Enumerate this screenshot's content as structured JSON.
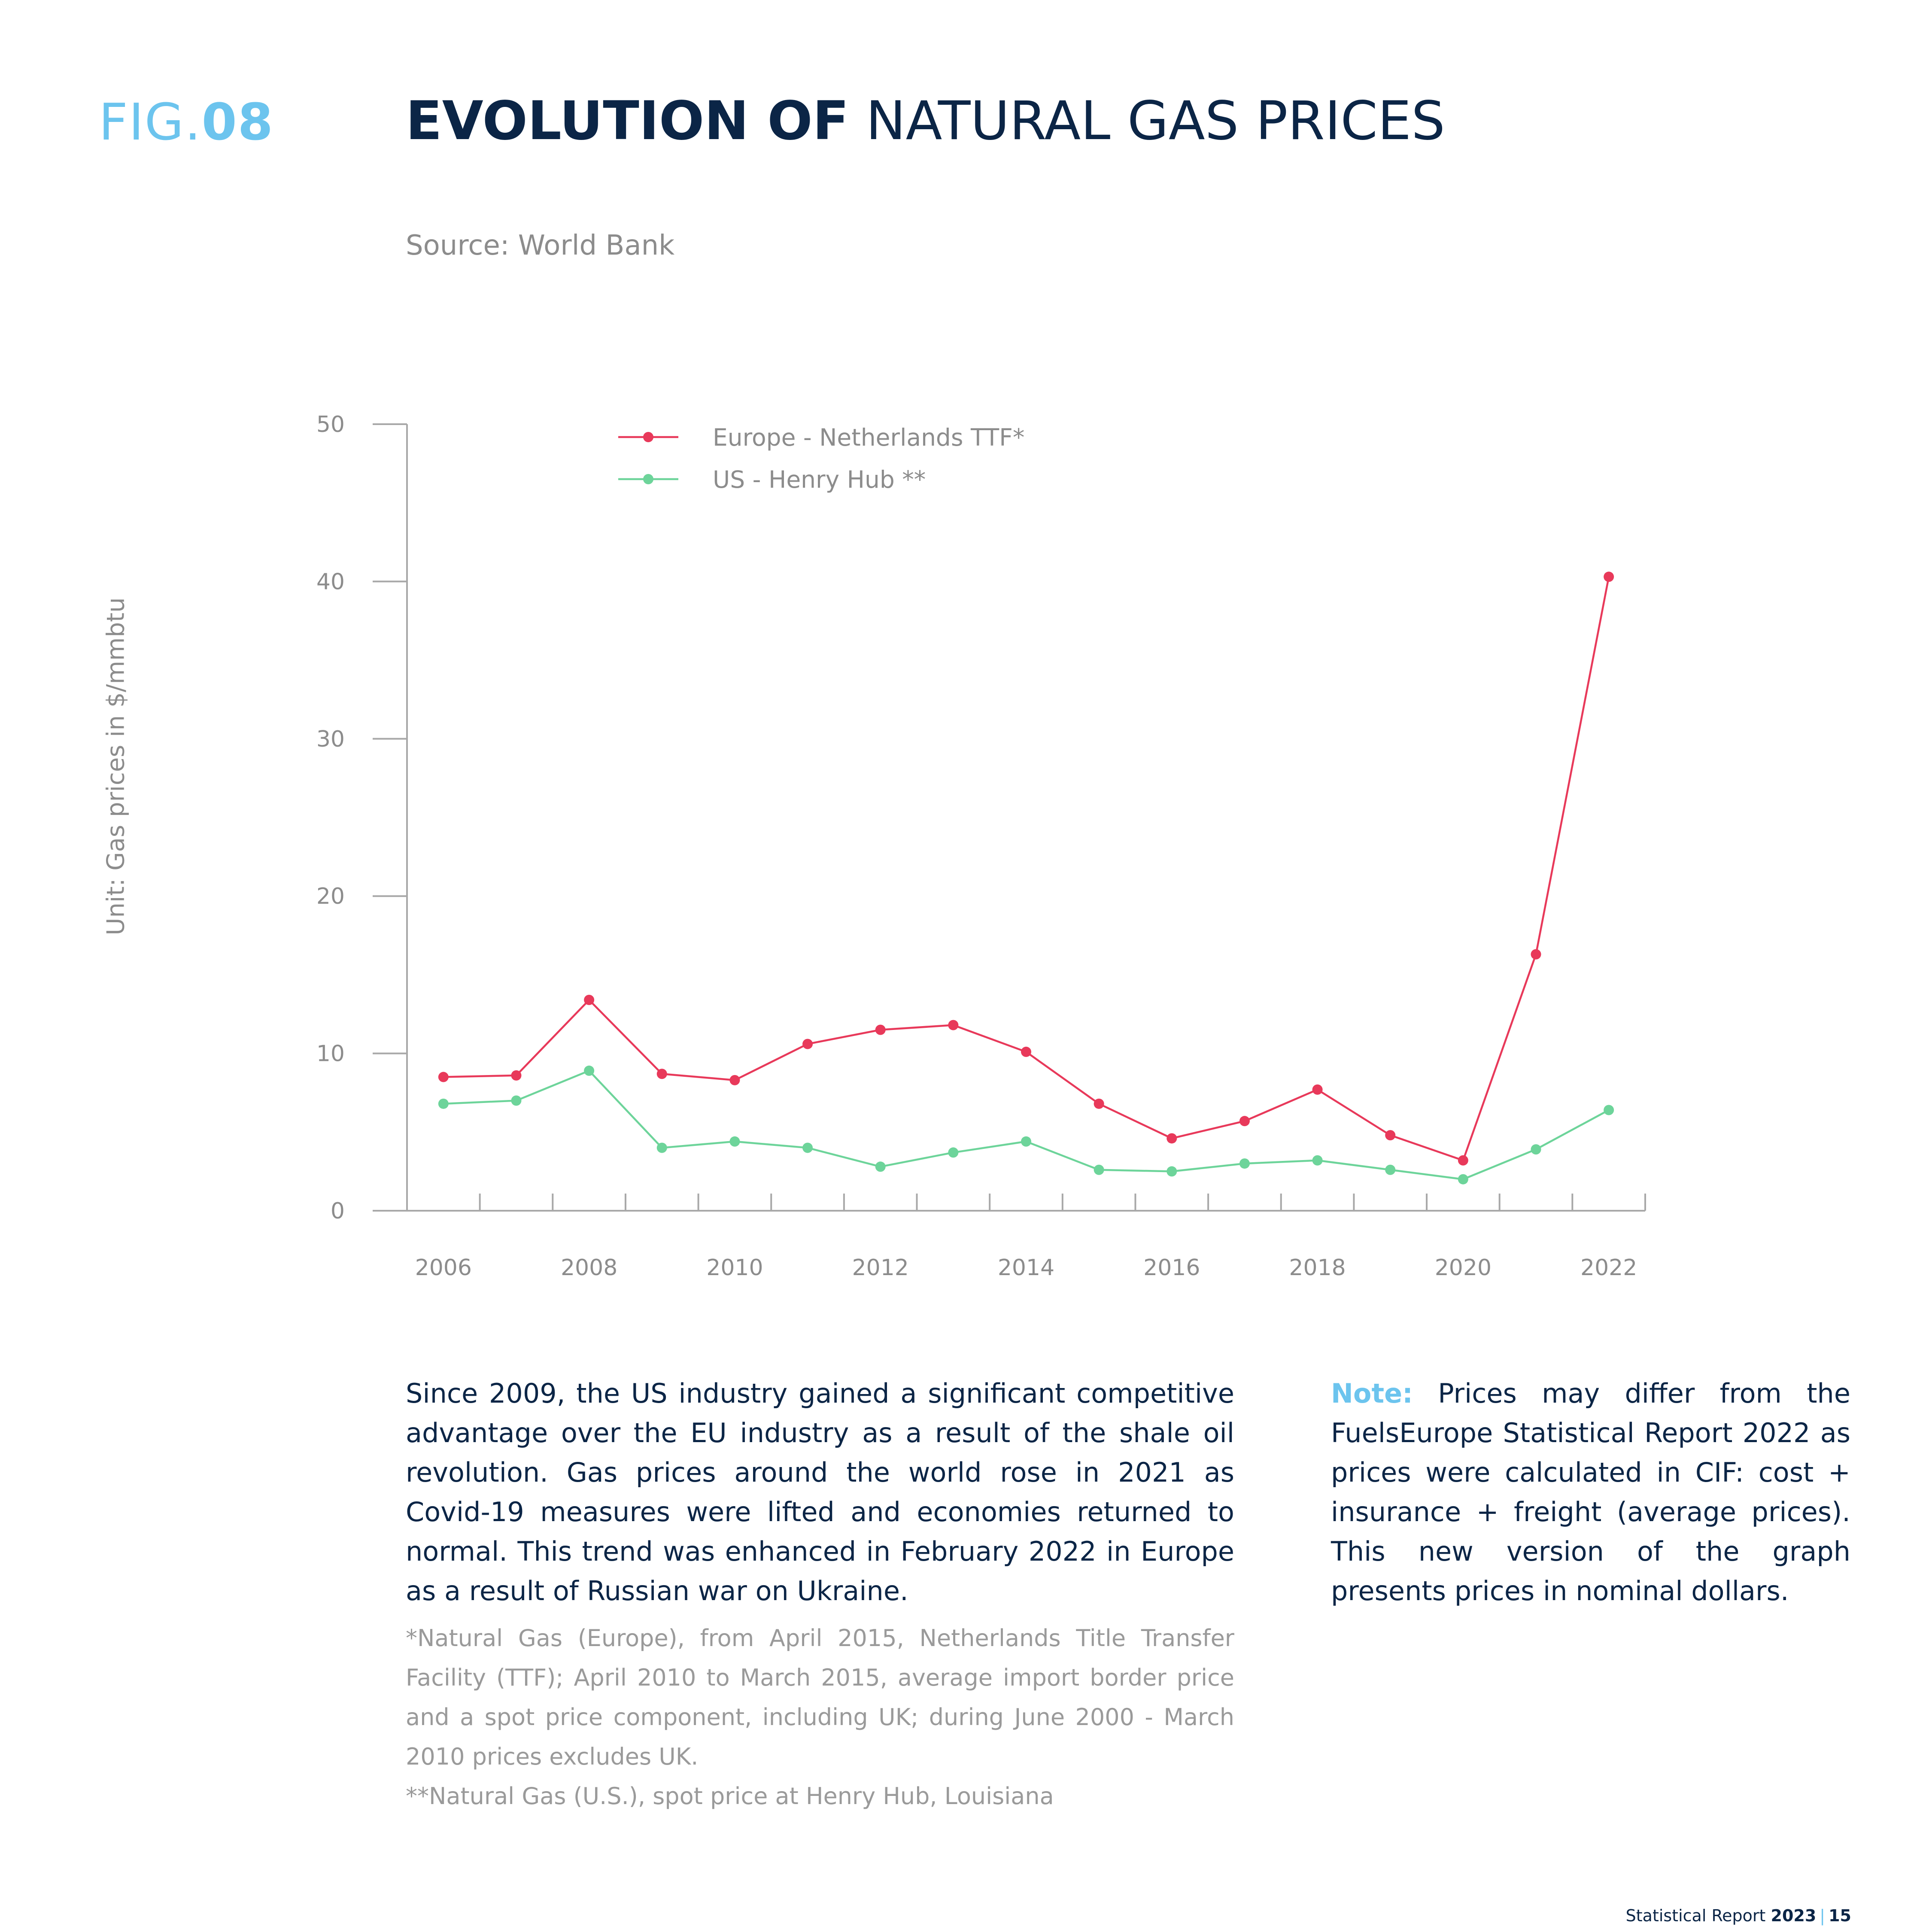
{
  "header": {
    "fig_prefix": "FIG.",
    "fig_number": "08",
    "title_bold": "EVOLUTION OF",
    "title_rest": " NATURAL GAS PRICES",
    "source": "Source: World Bank"
  },
  "y_axis_label": "Unit: Gas prices in $/mmbtu",
  "chart_data": {
    "type": "line",
    "x": [
      2006,
      2007,
      2008,
      2009,
      2010,
      2011,
      2012,
      2013,
      2014,
      2015,
      2016,
      2017,
      2018,
      2019,
      2020,
      2021,
      2022
    ],
    "x_tick_labels": [
      "2006",
      "2008",
      "2010",
      "2012",
      "2014",
      "2016",
      "2018",
      "2020",
      "2022"
    ],
    "y_ticks": [
      0,
      10,
      20,
      30,
      40,
      50
    ],
    "ylim": [
      0,
      50
    ],
    "xlim": [
      2005.5,
      2022.5
    ],
    "ylabel": "Unit: Gas prices in $/mmbtu",
    "legend_position": "top-left",
    "series": [
      {
        "name": "Europe - Netherlands TTF*",
        "color": "#e8395a",
        "values": [
          8.5,
          8.6,
          13.4,
          8.7,
          8.3,
          10.6,
          11.5,
          11.8,
          10.1,
          6.8,
          4.6,
          5.7,
          7.7,
          4.8,
          3.2,
          16.3,
          40.3
        ]
      },
      {
        "name": "US - Henry Hub **",
        "color": "#6dd49a",
        "values": [
          6.8,
          7.0,
          8.9,
          4.0,
          4.4,
          4.0,
          2.8,
          3.7,
          4.4,
          2.6,
          2.5,
          3.0,
          3.2,
          2.6,
          2.0,
          3.9,
          6.4
        ]
      }
    ]
  },
  "body_text": "Since 2009, the US industry gained a significant competitive advantage over the EU industry as a result of the shale oil revolution. Gas prices around the world rose in 2021 as Covid-19 measures were lifted and economies returned to normal. This trend was enhanced in February 2022 in Europe as a result of Russian war on Ukraine.",
  "note": {
    "label": "Note:",
    "text": " Prices may differ from the FuelsEurope Statistical Report 2022 as prices were calculated in CIF: cost + insurance + freight (average prices). This new version of the graph presents prices in nominal dollars."
  },
  "footnotes": {
    "europe": "*Natural Gas (Europe), from April 2015, Netherlands Title Transfer Facility (TTF); April 2010 to March 2015, average import border price and a spot price component, including UK; during June 2000 - March 2010 prices excludes UK.",
    "us": "**Natural Gas (U.S.), spot price at Henry Hub, Louisiana"
  },
  "footer": {
    "report": "Statistical Report ",
    "year": "2023",
    "separator": "|",
    "page": "15"
  }
}
